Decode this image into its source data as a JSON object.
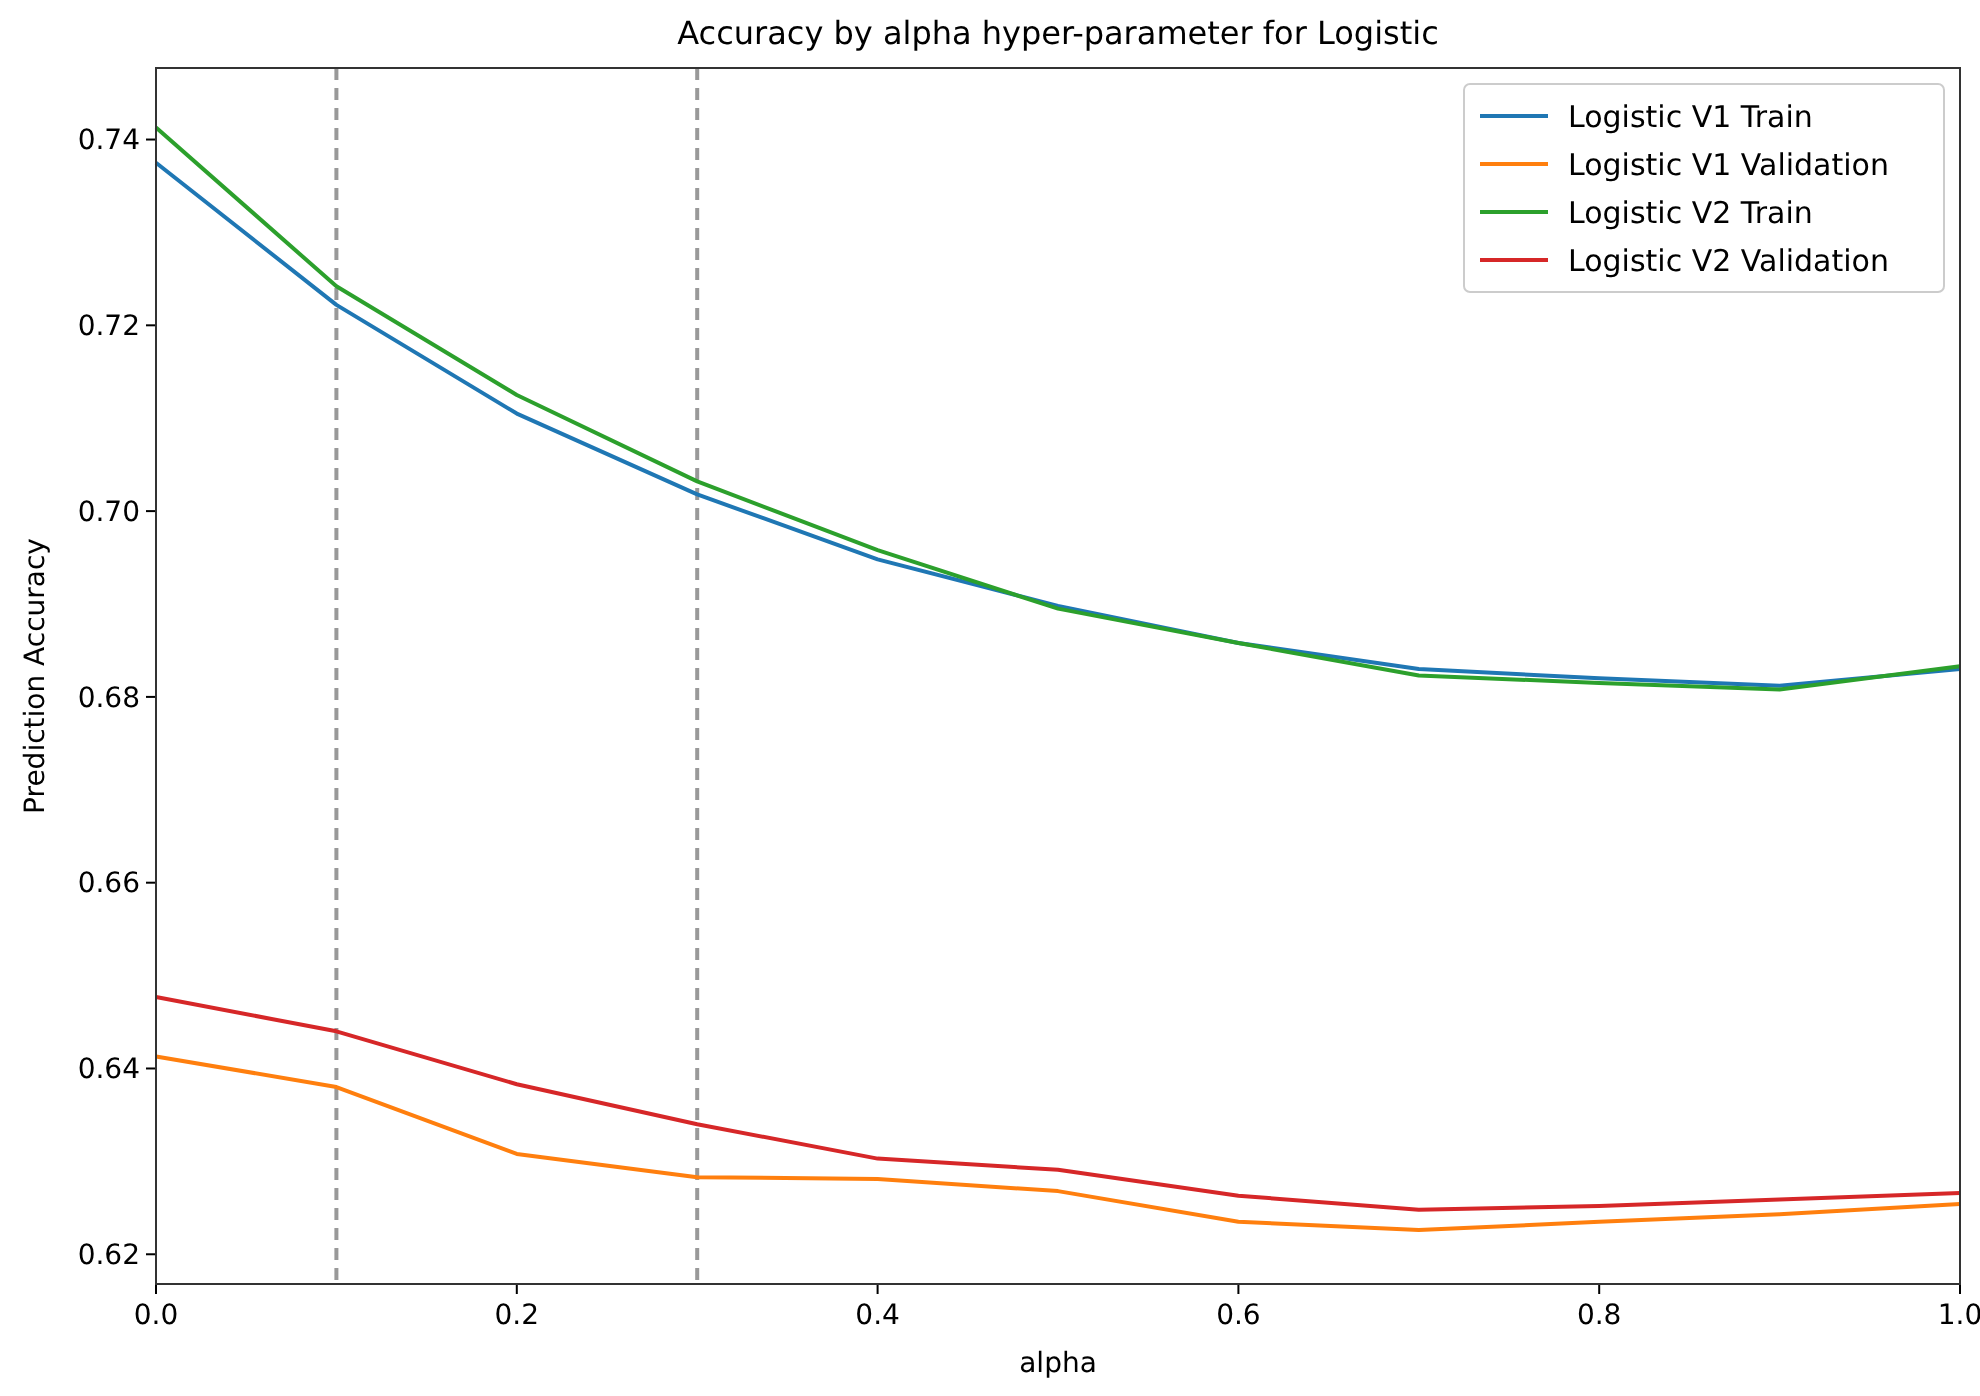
{
  "chart_data": {
    "type": "line",
    "title": "Accuracy by alpha hyper-parameter for Logistic",
    "xlabel": "alpha",
    "ylabel": "Prediction Accuracy",
    "x": [
      0,
      0.1,
      0.2,
      0.3,
      0.4,
      0.5,
      0.6,
      0.7,
      0.8,
      0.9,
      1.0
    ],
    "series": [
      {
        "name": "Logistic V1 Train",
        "color": "#1f77b4",
        "values": [
          0.7375,
          0.7222,
          0.7105,
          0.7018,
          0.6948,
          0.6898,
          0.6858,
          0.683,
          0.682,
          0.6812,
          0.683
        ]
      },
      {
        "name": "Logistic V1 Validation",
        "color": "#ff7f0e",
        "values": [
          0.6413,
          0.638,
          0.6308,
          0.6283,
          0.6281,
          0.6268,
          0.6235,
          0.6226,
          0.6235,
          0.6243,
          0.6254
        ]
      },
      {
        "name": "Logistic V2 Train",
        "color": "#2ca02c",
        "values": [
          0.7413,
          0.7242,
          0.7125,
          0.7032,
          0.6958,
          0.6895,
          0.6858,
          0.6823,
          0.6815,
          0.6808,
          0.6833
        ]
      },
      {
        "name": "Logistic V2 Validation",
        "color": "#d62728",
        "values": [
          0.6477,
          0.644,
          0.6383,
          0.634,
          0.6303,
          0.6291,
          0.6263,
          0.6248,
          0.6252,
          0.6259,
          0.6266
        ]
      }
    ],
    "xlim": [
      0,
      1
    ],
    "xticks": [
      {
        "value": 0,
        "label": "0.0"
      },
      0.2,
      0.4,
      0.6,
      0.8,
      {
        "value": 1,
        "label": "1.0"
      }
    ],
    "ylim": [
      0.6168,
      0.7477
    ],
    "yticks": [
      {
        "value": 0.62,
        "label": "0.62"
      },
      {
        "value": 0.64,
        "label": "0.64"
      },
      {
        "value": 0.66,
        "label": "0.66"
      },
      {
        "value": 0.68,
        "label": "0.68"
      },
      {
        "value": 0.7,
        "label": "0.70"
      },
      {
        "value": 0.72,
        "label": "0.72"
      },
      {
        "value": 0.74,
        "label": "0.74"
      }
    ],
    "ref_lines": [
      {
        "axis": "x",
        "value": 0.1,
        "color": "#999999",
        "line_style": "dashed"
      },
      {
        "axis": "x",
        "value": 0.3,
        "color": "#999999",
        "line_style": "dashed"
      }
    ],
    "legend": "top right",
    "grid": false,
    "line_style": "solid"
  }
}
